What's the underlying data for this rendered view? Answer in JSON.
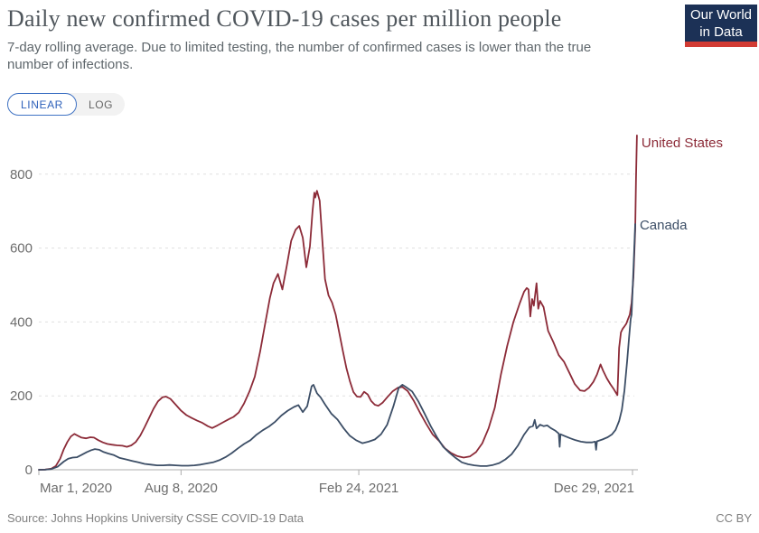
{
  "logo": {
    "line1": "Our World",
    "line2": "in Data",
    "bg_color": "#1c3156",
    "accent_color": "#d23b33"
  },
  "controls": {
    "options": [
      "LINEAR",
      "LOG"
    ],
    "selected": "LINEAR"
  },
  "footer": {
    "source": "Source: Johns Hopkins University CSSE COVID-19 Data",
    "license": "CC BY"
  },
  "chart_data": {
    "type": "line",
    "title": "Daily new confirmed COVID-19 cases per million people",
    "subtitle": "7-day rolling average. Due to limited testing, the number of confirmed cases is lower than the true number of infections.",
    "grid": "horizontal-dashed",
    "legend_position": "end-of-line-labels",
    "colors": {
      "grid": "#e0e0e0",
      "axis": "#adadad",
      "tick_label": "#6d6d6d"
    },
    "y_axis": {
      "ticks": [
        0,
        200,
        400,
        600,
        800
      ],
      "max": 900,
      "label": ""
    },
    "x_axis": {
      "start_date": "2020-03-01",
      "end_date": "2022-01-03",
      "ticks": [
        {
          "label": "Mar 1, 2020",
          "date": "2020-03-01"
        },
        {
          "label": "Aug 8, 2020",
          "date": "2020-08-08"
        },
        {
          "label": "Feb 24, 2021",
          "date": "2021-02-24"
        },
        {
          "label": "Dec 29, 2021",
          "date": "2021-12-29"
        }
      ]
    },
    "series": [
      {
        "name": "United States",
        "color": "#8c2b38",
        "label_dy": 13,
        "points": [
          [
            "2020-03-01",
            0
          ],
          [
            "2020-03-08",
            0.5
          ],
          [
            "2020-03-15",
            3
          ],
          [
            "2020-03-20",
            10
          ],
          [
            "2020-03-25",
            30
          ],
          [
            "2020-03-29",
            55
          ],
          [
            "2020-04-02",
            75
          ],
          [
            "2020-04-06",
            90
          ],
          [
            "2020-04-10",
            97
          ],
          [
            "2020-04-14",
            92
          ],
          [
            "2020-04-18",
            87
          ],
          [
            "2020-04-23",
            85
          ],
          [
            "2020-04-28",
            88
          ],
          [
            "2020-05-02",
            87
          ],
          [
            "2020-05-07",
            80
          ],
          [
            "2020-05-12",
            74
          ],
          [
            "2020-05-17",
            70
          ],
          [
            "2020-05-22",
            68
          ],
          [
            "2020-05-28",
            66
          ],
          [
            "2020-06-03",
            65
          ],
          [
            "2020-06-08",
            62
          ],
          [
            "2020-06-13",
            66
          ],
          [
            "2020-06-18",
            75
          ],
          [
            "2020-06-23",
            92
          ],
          [
            "2020-06-28",
            115
          ],
          [
            "2020-07-03",
            140
          ],
          [
            "2020-07-08",
            165
          ],
          [
            "2020-07-13",
            185
          ],
          [
            "2020-07-18",
            196
          ],
          [
            "2020-07-22",
            198
          ],
          [
            "2020-07-27",
            192
          ],
          [
            "2020-08-02",
            176
          ],
          [
            "2020-08-08",
            160
          ],
          [
            "2020-08-14",
            148
          ],
          [
            "2020-08-20",
            140
          ],
          [
            "2020-08-26",
            133
          ],
          [
            "2020-09-01",
            127
          ],
          [
            "2020-09-07",
            118
          ],
          [
            "2020-09-12",
            113
          ],
          [
            "2020-09-18",
            120
          ],
          [
            "2020-09-24",
            128
          ],
          [
            "2020-09-30",
            136
          ],
          [
            "2020-10-06",
            143
          ],
          [
            "2020-10-12",
            155
          ],
          [
            "2020-10-18",
            180
          ],
          [
            "2020-10-24",
            212
          ],
          [
            "2020-10-30",
            252
          ],
          [
            "2020-11-05",
            320
          ],
          [
            "2020-11-11",
            400
          ],
          [
            "2020-11-16",
            465
          ],
          [
            "2020-11-20",
            505
          ],
          [
            "2020-11-25",
            530
          ],
          [
            "2020-11-30",
            488
          ],
          [
            "2020-12-05",
            552
          ],
          [
            "2020-12-10",
            620
          ],
          [
            "2020-12-15",
            650
          ],
          [
            "2020-12-19",
            660
          ],
          [
            "2020-12-23",
            628
          ],
          [
            "2020-12-27",
            548
          ],
          [
            "2020-12-31",
            605
          ],
          [
            "2021-01-03",
            700
          ],
          [
            "2021-01-05",
            750
          ],
          [
            "2021-01-06",
            737
          ],
          [
            "2021-01-08",
            755
          ],
          [
            "2021-01-11",
            728
          ],
          [
            "2021-01-14",
            622
          ],
          [
            "2021-01-17",
            516
          ],
          [
            "2021-01-21",
            472
          ],
          [
            "2021-01-25",
            452
          ],
          [
            "2021-01-29",
            420
          ],
          [
            "2021-02-02",
            372
          ],
          [
            "2021-02-06",
            322
          ],
          [
            "2021-02-10",
            276
          ],
          [
            "2021-02-14",
            240
          ],
          [
            "2021-02-18",
            210
          ],
          [
            "2021-02-22",
            198
          ],
          [
            "2021-02-26",
            197
          ],
          [
            "2021-03-02",
            211
          ],
          [
            "2021-03-06",
            204
          ],
          [
            "2021-03-10",
            186
          ],
          [
            "2021-03-14",
            176
          ],
          [
            "2021-03-18",
            173
          ],
          [
            "2021-03-23",
            182
          ],
          [
            "2021-03-28",
            196
          ],
          [
            "2021-04-03",
            212
          ],
          [
            "2021-04-09",
            222
          ],
          [
            "2021-04-14",
            224
          ],
          [
            "2021-04-20",
            213
          ],
          [
            "2021-04-27",
            186
          ],
          [
            "2021-05-04",
            154
          ],
          [
            "2021-05-11",
            124
          ],
          [
            "2021-05-18",
            96
          ],
          [
            "2021-05-25",
            79
          ],
          [
            "2021-06-01",
            58
          ],
          [
            "2021-06-08",
            45
          ],
          [
            "2021-06-15",
            37
          ],
          [
            "2021-06-22",
            33
          ],
          [
            "2021-06-29",
            36
          ],
          [
            "2021-07-06",
            48
          ],
          [
            "2021-07-13",
            72
          ],
          [
            "2021-07-20",
            112
          ],
          [
            "2021-07-27",
            168
          ],
          [
            "2021-08-03",
            258
          ],
          [
            "2021-08-10",
            335
          ],
          [
            "2021-08-17",
            400
          ],
          [
            "2021-08-24",
            450
          ],
          [
            "2021-08-29",
            482
          ],
          [
            "2021-09-01",
            492
          ],
          [
            "2021-09-03",
            488
          ],
          [
            "2021-09-05",
            415
          ],
          [
            "2021-09-07",
            462
          ],
          [
            "2021-09-09",
            444
          ],
          [
            "2021-09-12",
            505
          ],
          [
            "2021-09-14",
            436
          ],
          [
            "2021-09-16",
            457
          ],
          [
            "2021-09-20",
            440
          ],
          [
            "2021-09-25",
            376
          ],
          [
            "2021-10-01",
            345
          ],
          [
            "2021-10-07",
            310
          ],
          [
            "2021-10-13",
            292
          ],
          [
            "2021-10-19",
            262
          ],
          [
            "2021-10-25",
            232
          ],
          [
            "2021-10-31",
            215
          ],
          [
            "2021-11-05",
            213
          ],
          [
            "2021-11-10",
            222
          ],
          [
            "2021-11-15",
            238
          ],
          [
            "2021-11-19",
            258
          ],
          [
            "2021-11-23",
            285
          ],
          [
            "2021-11-26",
            268
          ],
          [
            "2021-11-30",
            248
          ],
          [
            "2021-12-04",
            232
          ],
          [
            "2021-12-08",
            218
          ],
          [
            "2021-12-10",
            210
          ],
          [
            "2021-12-12",
            202
          ],
          [
            "2021-12-14",
            330
          ],
          [
            "2021-12-16",
            372
          ],
          [
            "2021-12-18",
            382
          ],
          [
            "2021-12-20",
            388
          ],
          [
            "2021-12-22",
            395
          ],
          [
            "2021-12-24",
            408
          ],
          [
            "2021-12-26",
            420
          ],
          [
            "2021-12-28",
            452
          ],
          [
            "2021-12-30",
            520
          ],
          [
            "2022-01-01",
            650
          ],
          [
            "2022-01-02",
            790
          ],
          [
            "2022-01-03",
            905
          ]
        ]
      },
      {
        "name": "Canada",
        "color": "#3c4e66",
        "label_dy": 6,
        "points": [
          [
            "2020-03-01",
            0
          ],
          [
            "2020-03-08",
            0.3
          ],
          [
            "2020-03-15",
            2
          ],
          [
            "2020-03-22",
            8
          ],
          [
            "2020-03-29",
            22
          ],
          [
            "2020-04-03",
            30
          ],
          [
            "2020-04-08",
            33
          ],
          [
            "2020-04-13",
            34
          ],
          [
            "2020-04-18",
            40
          ],
          [
            "2020-04-24",
            48
          ],
          [
            "2020-04-29",
            53
          ],
          [
            "2020-05-03",
            56
          ],
          [
            "2020-05-08",
            54
          ],
          [
            "2020-05-13",
            48
          ],
          [
            "2020-05-18",
            44
          ],
          [
            "2020-05-24",
            40
          ],
          [
            "2020-05-31",
            32
          ],
          [
            "2020-06-07",
            28
          ],
          [
            "2020-06-14",
            24
          ],
          [
            "2020-06-21",
            20
          ],
          [
            "2020-06-28",
            16
          ],
          [
            "2020-07-05",
            14
          ],
          [
            "2020-07-12",
            12
          ],
          [
            "2020-07-19",
            12
          ],
          [
            "2020-07-26",
            13
          ],
          [
            "2020-08-02",
            12
          ],
          [
            "2020-08-09",
            11
          ],
          [
            "2020-08-16",
            11
          ],
          [
            "2020-08-23",
            12
          ],
          [
            "2020-08-30",
            14
          ],
          [
            "2020-09-06",
            17
          ],
          [
            "2020-09-13",
            20
          ],
          [
            "2020-09-20",
            26
          ],
          [
            "2020-09-27",
            34
          ],
          [
            "2020-10-04",
            45
          ],
          [
            "2020-10-11",
            58
          ],
          [
            "2020-10-18",
            70
          ],
          [
            "2020-10-25",
            80
          ],
          [
            "2020-11-01",
            95
          ],
          [
            "2020-11-08",
            107
          ],
          [
            "2020-11-15",
            117
          ],
          [
            "2020-11-22",
            130
          ],
          [
            "2020-11-29",
            147
          ],
          [
            "2020-12-06",
            160
          ],
          [
            "2020-12-13",
            170
          ],
          [
            "2020-12-18",
            175
          ],
          [
            "2020-12-23",
            156
          ],
          [
            "2020-12-28",
            172
          ],
          [
            "2021-01-02",
            226
          ],
          [
            "2021-01-04",
            230
          ],
          [
            "2021-01-08",
            207
          ],
          [
            "2021-01-12",
            196
          ],
          [
            "2021-01-17",
            177
          ],
          [
            "2021-01-24",
            152
          ],
          [
            "2021-01-31",
            136
          ],
          [
            "2021-02-07",
            112
          ],
          [
            "2021-02-14",
            92
          ],
          [
            "2021-02-21",
            80
          ],
          [
            "2021-02-28",
            72
          ],
          [
            "2021-03-07",
            76
          ],
          [
            "2021-03-14",
            82
          ],
          [
            "2021-03-21",
            96
          ],
          [
            "2021-03-28",
            122
          ],
          [
            "2021-04-04",
            172
          ],
          [
            "2021-04-10",
            222
          ],
          [
            "2021-04-14",
            230
          ],
          [
            "2021-04-18",
            224
          ],
          [
            "2021-04-25",
            212
          ],
          [
            "2021-05-02",
            185
          ],
          [
            "2021-05-09",
            152
          ],
          [
            "2021-05-16",
            118
          ],
          [
            "2021-05-23",
            88
          ],
          [
            "2021-05-30",
            62
          ],
          [
            "2021-06-06",
            46
          ],
          [
            "2021-06-13",
            32
          ],
          [
            "2021-06-20",
            20
          ],
          [
            "2021-06-27",
            15
          ],
          [
            "2021-07-04",
            12
          ],
          [
            "2021-07-11",
            10
          ],
          [
            "2021-07-18",
            10
          ],
          [
            "2021-07-25",
            13
          ],
          [
            "2021-08-01",
            18
          ],
          [
            "2021-08-08",
            28
          ],
          [
            "2021-08-15",
            42
          ],
          [
            "2021-08-22",
            65
          ],
          [
            "2021-08-29",
            95
          ],
          [
            "2021-09-04",
            115
          ],
          [
            "2021-09-08",
            118
          ],
          [
            "2021-09-10",
            135
          ],
          [
            "2021-09-12",
            112
          ],
          [
            "2021-09-16",
            122
          ],
          [
            "2021-09-20",
            118
          ],
          [
            "2021-09-24",
            120
          ],
          [
            "2021-09-28",
            113
          ],
          [
            "2021-10-03",
            106
          ],
          [
            "2021-10-07",
            98
          ],
          [
            "2021-10-08",
            62
          ],
          [
            "2021-10-09",
            96
          ],
          [
            "2021-10-14",
            91
          ],
          [
            "2021-10-20",
            85
          ],
          [
            "2021-10-26",
            80
          ],
          [
            "2021-11-01",
            76
          ],
          [
            "2021-11-07",
            74
          ],
          [
            "2021-11-13",
            74
          ],
          [
            "2021-11-17",
            76
          ],
          [
            "2021-11-18",
            54
          ],
          [
            "2021-11-19",
            77
          ],
          [
            "2021-11-25",
            82
          ],
          [
            "2021-12-01",
            88
          ],
          [
            "2021-12-06",
            96
          ],
          [
            "2021-12-10",
            108
          ],
          [
            "2021-12-14",
            132
          ],
          [
            "2021-12-17",
            162
          ],
          [
            "2021-12-20",
            215
          ],
          [
            "2021-12-23",
            295
          ],
          [
            "2021-12-25",
            355
          ],
          [
            "2021-12-27",
            408
          ],
          [
            "2021-12-28",
            420
          ],
          [
            "2021-12-30",
            540
          ],
          [
            "2022-01-01",
            665
          ]
        ]
      }
    ]
  }
}
